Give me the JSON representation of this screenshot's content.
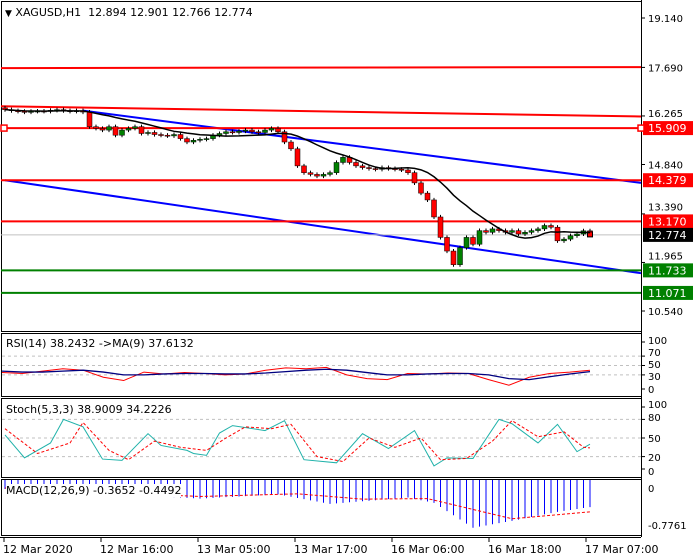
{
  "header": {
    "symbol": "XAGUSD,H1",
    "open": "12.894",
    "high": "12.901",
    "low": "12.766",
    "close": "12.774",
    "menu_icon": "triangle-down-icon"
  },
  "colors": {
    "bull": "#008000",
    "bear": "#ff0000",
    "resistance": "#ff0000",
    "support": "#008000",
    "channel": "#0000ff",
    "ma": "#000000",
    "current": "#000000"
  },
  "price_axis": {
    "ticks": [
      "19.140",
      "17.690",
      "16.265",
      "14.840",
      "13.390",
      "11.965",
      "10.540"
    ],
    "tick_values": [
      19.14,
      17.69,
      16.265,
      14.84,
      13.39,
      11.965,
      10.54
    ]
  },
  "levels": [
    {
      "label": "15.909",
      "price": 15.909,
      "color": "#ff0000"
    },
    {
      "label": "14.379",
      "price": 14.379,
      "color": "#ff0000"
    },
    {
      "label": "13.170",
      "price": 13.17,
      "color": "#ff0000"
    },
    {
      "label": "12.774",
      "price": 12.774,
      "color": "#000000"
    },
    {
      "label": "11.733",
      "price": 11.733,
      "color": "#008000"
    },
    {
      "label": "11.071",
      "price": 11.071,
      "color": "#008000"
    }
  ],
  "extra_lines": [
    {
      "from": 17.67,
      "to": 17.7,
      "color": "#ff0000"
    },
    {
      "from": 16.55,
      "to": 16.25,
      "color": "#ff0000"
    },
    {
      "from_bar": 12,
      "from": 16.42,
      "to": 14.3,
      "color": "#0000ff"
    },
    {
      "from_bar": 0,
      "from": 14.379,
      "to": 11.65,
      "color": "#0000ff"
    }
  ],
  "chart_data": {
    "type": "candlestick",
    "first_open": 16.5,
    "closes": [
      16.45,
      16.42,
      16.4,
      16.38,
      16.4,
      16.41,
      16.4,
      16.43,
      16.45,
      16.42,
      16.4,
      16.42,
      16.38,
      15.95,
      15.9,
      15.85,
      15.95,
      15.7,
      15.85,
      15.9,
      15.95,
      15.75,
      15.78,
      15.72,
      15.7,
      15.68,
      15.72,
      15.6,
      15.5,
      15.55,
      15.58,
      15.6,
      15.7,
      15.75,
      15.8,
      15.78,
      15.82,
      15.85,
      15.8,
      15.78,
      15.85,
      15.9,
      15.8,
      15.5,
      15.3,
      14.8,
      14.6,
      14.55,
      14.5,
      14.55,
      14.6,
      14.9,
      15.05,
      14.9,
      14.8,
      14.75,
      14.72,
      14.7,
      14.75,
      14.72,
      14.7,
      14.68,
      14.6,
      14.3,
      14.0,
      13.8,
      13.3,
      12.7,
      12.3,
      11.9,
      12.4,
      12.7,
      12.5,
      12.9,
      12.85,
      12.95,
      12.9,
      12.85,
      12.9,
      12.8,
      12.85,
      12.9,
      12.95,
      13.05,
      13.0,
      12.6,
      12.65,
      12.75,
      12.8,
      12.894,
      12.774
    ],
    "x_ticks": [
      "12 Mar 2020",
      "12 Mar 16:00",
      "13 Mar 05:00",
      "13 Mar 17:00",
      "16 Mar 06:00",
      "16 Mar 18:00",
      "17 Mar 07:00"
    ],
    "rsi": {
      "label": "RSI(14) 38.2432  ->MA(9) 37.6132",
      "ticks": [
        "100",
        "70",
        "50",
        "30",
        "0"
      ],
      "rsi": [
        35,
        33,
        38,
        43,
        40,
        25,
        18,
        36,
        32,
        35,
        33,
        30,
        32,
        40,
        45,
        43,
        46,
        30,
        22,
        20,
        33,
        32,
        34,
        33,
        20,
        8,
        25,
        33,
        36,
        40
      ],
      "ma": [
        38,
        36,
        36,
        38,
        40,
        36,
        30,
        30,
        32,
        33,
        33,
        32,
        32,
        34,
        37,
        40,
        42,
        40,
        35,
        30,
        30,
        32,
        33,
        33,
        30,
        22,
        20,
        26,
        32,
        37
      ]
    },
    "stoch": {
      "label": "Stoch(5,3,3) 38.9009 34.2226",
      "ticks": [
        "100",
        "80",
        "50",
        "20",
        "0"
      ],
      "main": [
        [
          0,
          55
        ],
        [
          3,
          18
        ],
        [
          7,
          42
        ],
        [
          9,
          80
        ],
        [
          12,
          68
        ],
        [
          15,
          16
        ],
        [
          18,
          14
        ],
        [
          22,
          57
        ],
        [
          24,
          38
        ],
        [
          28,
          30
        ],
        [
          29,
          25
        ],
        [
          31,
          22
        ],
        [
          33,
          58
        ],
        [
          35,
          70
        ],
        [
          40,
          62
        ],
        [
          43,
          78
        ],
        [
          46,
          15
        ],
        [
          51,
          10
        ],
        [
          55,
          57
        ],
        [
          59,
          33
        ],
        [
          63,
          62
        ],
        [
          66,
          5
        ],
        [
          68,
          18
        ],
        [
          72,
          17
        ],
        [
          76,
          80
        ],
        [
          78,
          73
        ],
        [
          82,
          42
        ],
        [
          85,
          72
        ],
        [
          88,
          28
        ],
        [
          90,
          40
        ]
      ],
      "signal": [
        [
          0,
          65
        ],
        [
          5,
          25
        ],
        [
          10,
          42
        ],
        [
          12,
          75
        ],
        [
          16,
          30
        ],
        [
          19,
          15
        ],
        [
          23,
          45
        ],
        [
          27,
          35
        ],
        [
          31,
          30
        ],
        [
          34,
          50
        ],
        [
          37,
          68
        ],
        [
          41,
          65
        ],
        [
          44,
          72
        ],
        [
          48,
          20
        ],
        [
          52,
          12
        ],
        [
          56,
          50
        ],
        [
          60,
          35
        ],
        [
          64,
          50
        ],
        [
          67,
          15
        ],
        [
          71,
          17
        ],
        [
          75,
          45
        ],
        [
          78,
          78
        ],
        [
          82,
          52
        ],
        [
          86,
          60
        ],
        [
          89,
          35
        ],
        [
          90,
          34
        ]
      ]
    },
    "macd": {
      "label": "MACD(12,26,9) -0.3652 -0.4492",
      "ticks": [
        "0",
        "-0.7761"
      ],
      "hist": [
        [
          0,
          -0.02
        ],
        [
          15,
          -0.1
        ],
        [
          30,
          -0.2
        ],
        [
          42,
          -0.12
        ],
        [
          50,
          -0.3
        ],
        [
          58,
          -0.22
        ],
        [
          62,
          -0.18
        ],
        [
          66,
          -0.28
        ],
        [
          72,
          -0.75
        ],
        [
          78,
          -0.62
        ],
        [
          85,
          -0.45
        ],
        [
          90,
          -0.36
        ]
      ],
      "signal": [
        [
          0,
          0
        ],
        [
          30,
          -0.16
        ],
        [
          45,
          -0.11
        ],
        [
          55,
          -0.21
        ],
        [
          65,
          -0.2
        ],
        [
          78,
          -0.58
        ],
        [
          90,
          -0.45
        ]
      ]
    }
  }
}
